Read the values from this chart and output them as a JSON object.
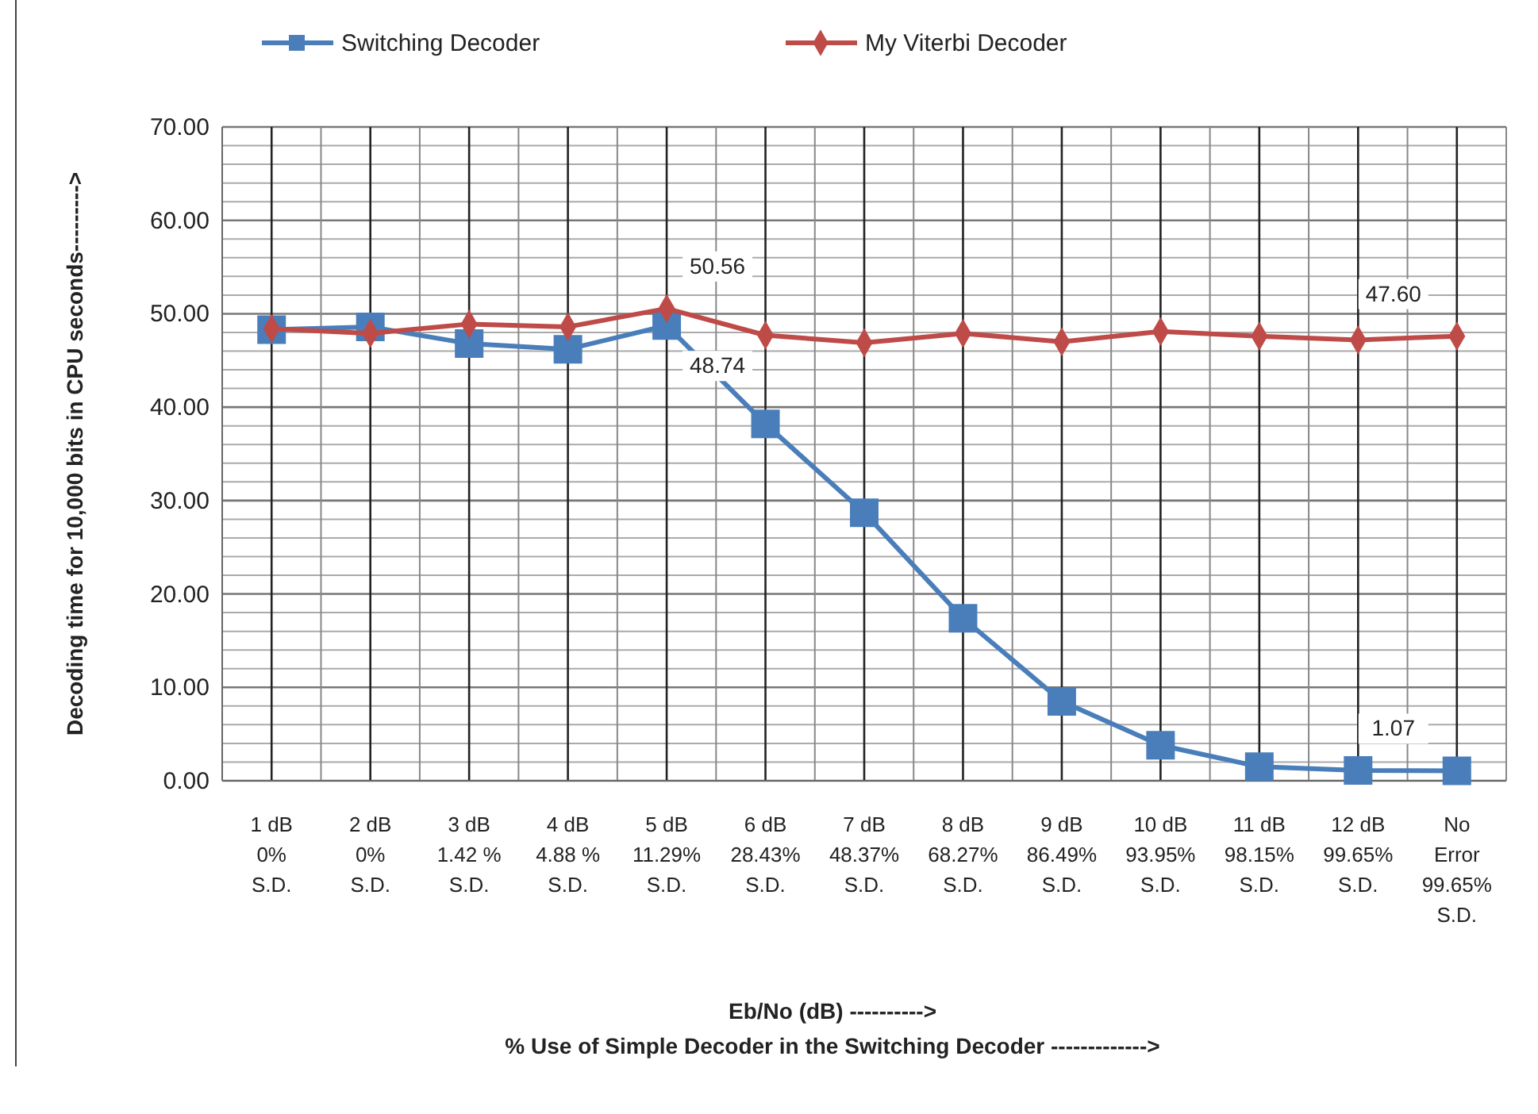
{
  "chart_data": {
    "type": "line",
    "ylabel": "Decoding time for 10,000 bits in CPU seconds--------->",
    "xlabel": "Eb/No (dB) ---------->\n% Use of Simple Decoder in the Switching Decoder ------------->",
    "categories": [
      "1 dB\n0%\nS.D.",
      "2 dB\n0%\nS.D.",
      "3 dB\n1.42 %\nS.D.",
      "4 dB\n4.88 %\nS.D.",
      "5 dB\n11.29%\nS.D.",
      "6 dB\n28.43%\nS.D.",
      "7 dB\n48.37%\nS.D.",
      "8 dB\n68.27%\nS.D.",
      "9 dB\n86.49%\nS.D.",
      "10 dB\n93.95%\nS.D.",
      "11 dB\n98.15%\nS.D.",
      "12 dB\n99.65%\nS.D.",
      "No\nError\n99.65%\nS.D."
    ],
    "series": [
      {
        "name": "Switching Decoder",
        "color": "#4a7ebb",
        "marker": "square",
        "values": [
          48.3,
          48.6,
          46.8,
          46.2,
          48.74,
          38.2,
          28.7,
          17.4,
          8.5,
          3.8,
          1.5,
          1.1,
          1.07
        ],
        "value_labels": [
          null,
          null,
          null,
          null,
          "48.74",
          null,
          null,
          null,
          null,
          null,
          null,
          null,
          "1.07"
        ]
      },
      {
        "name": "My Viterbi Decoder",
        "color": "#be4b48",
        "marker": "diamond",
        "values": [
          48.4,
          47.9,
          48.9,
          48.6,
          50.56,
          47.7,
          46.9,
          47.9,
          47.0,
          48.1,
          47.6,
          47.2,
          47.6
        ],
        "value_labels": [
          null,
          null,
          null,
          null,
          "50.56",
          null,
          null,
          null,
          null,
          null,
          null,
          null,
          "47.60"
        ]
      }
    ],
    "ylim": [
      0,
      70
    ],
    "yticks": [
      {
        "value": 0,
        "label": "0.00"
      },
      {
        "value": 10,
        "label": "10.00"
      },
      {
        "value": 20,
        "label": "20.00"
      },
      {
        "value": 30,
        "label": "30.00"
      },
      {
        "value": 40,
        "label": "40.00"
      },
      {
        "value": 50,
        "label": "50.00"
      },
      {
        "value": 60,
        "label": "60.00"
      },
      {
        "value": 70,
        "label": "70.00"
      }
    ],
    "grid": true,
    "legend": "top"
  }
}
